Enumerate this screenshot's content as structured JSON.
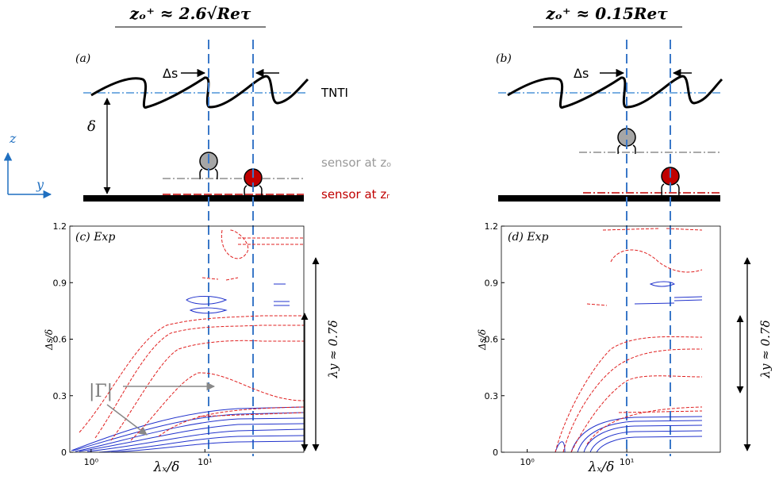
{
  "panels": [
    {
      "title": "zₒ⁺ ≈ 2.6√Reτ",
      "label": "(a)",
      "delta_s": "Δs",
      "tnti": "TNTI",
      "delta": "δ",
      "sensor_o": "sensor at zₒ",
      "sensor_r": "sensor at zᵣ",
      "axis_z": "z",
      "axis_y": "y"
    },
    {
      "title": "zₒ⁺ ≈ 0.15Reτ",
      "label": "(b)",
      "delta_s": "Δs"
    }
  ],
  "plots": [
    {
      "label": "(c) Exp",
      "ylabel": "Δs/δ",
      "xlabel": "λₓ/δ",
      "annotation": "|Γ|",
      "side_label": "λy ≈ 0.7δ",
      "xlog": true,
      "xlim": [
        0.65,
        74
      ],
      "ylim": [
        0,
        1.2
      ],
      "yticks": [
        0,
        0.3,
        0.6,
        0.9,
        1.2
      ],
      "xticks": [
        {
          "value": 1,
          "label": "10⁰"
        },
        {
          "value": 10,
          "label": "10¹"
        }
      ]
    },
    {
      "label": "(d) Exp",
      "ylabel": "Δs/δ",
      "xlabel": "λₓ/δ",
      "side_label": "λy ≈ 0.7δ",
      "xlog": true,
      "xlim": [
        0.55,
        87
      ],
      "ylim": [
        0,
        1.2
      ],
      "yticks": [
        0,
        0.3,
        0.6,
        0.9,
        1.2
      ],
      "xticks": [
        {
          "value": 1,
          "label": "10⁰"
        },
        {
          "value": 10,
          "label": "10¹"
        }
      ]
    }
  ]
}
